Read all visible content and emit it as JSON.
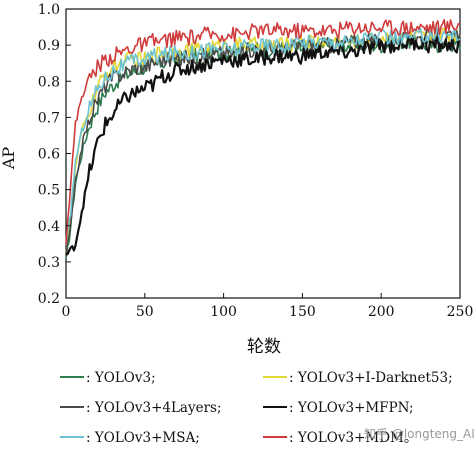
{
  "chart_data": {
    "type": "line",
    "title": "",
    "xlabel": "轮数",
    "ylabel": "AP",
    "xlim": [
      0,
      250
    ],
    "ylim": [
      0.2,
      1.0
    ],
    "x_ticks": [
      0,
      50,
      100,
      150,
      200,
      250
    ],
    "y_ticks": [
      0.2,
      0.3,
      0.4,
      0.5,
      0.6,
      0.7,
      0.8,
      0.9,
      1.0
    ],
    "grid": false,
    "legend_position": "bottom",
    "legend_columns": 2,
    "x": [
      0,
      3,
      6,
      10,
      15,
      20,
      25,
      30,
      35,
      40,
      45,
      50,
      55,
      60,
      70,
      80,
      90,
      100,
      110,
      120,
      130,
      140,
      150,
      160,
      170,
      180,
      190,
      200,
      210,
      220,
      230,
      240,
      250
    ],
    "series": [
      {
        "name": ": YOLOv3;",
        "color": "#2e7d4f",
        "values": [
          0.3,
          0.4,
          0.52,
          0.6,
          0.68,
          0.73,
          0.77,
          0.79,
          0.81,
          0.82,
          0.83,
          0.84,
          0.84,
          0.85,
          0.86,
          0.87,
          0.87,
          0.88,
          0.88,
          0.89,
          0.89,
          0.89,
          0.89,
          0.9,
          0.9,
          0.9,
          0.9,
          0.9,
          0.91,
          0.91,
          0.9,
          0.9,
          0.9
        ]
      },
      {
        "name": ": YOLOv3+I-Darknet53;",
        "color": "#e2d632",
        "values": [
          0.33,
          0.42,
          0.56,
          0.66,
          0.72,
          0.78,
          0.82,
          0.84,
          0.85,
          0.86,
          0.86,
          0.86,
          0.87,
          0.88,
          0.88,
          0.89,
          0.89,
          0.9,
          0.9,
          0.9,
          0.9,
          0.9,
          0.91,
          0.91,
          0.91,
          0.91,
          0.91,
          0.92,
          0.92,
          0.92,
          0.92,
          0.93,
          0.93
        ]
      },
      {
        "name": ": YOLOv3+4Layers;",
        "color": "#4a4a4a",
        "values": [
          0.32,
          0.4,
          0.52,
          0.62,
          0.7,
          0.75,
          0.79,
          0.81,
          0.82,
          0.83,
          0.84,
          0.84,
          0.85,
          0.86,
          0.86,
          0.87,
          0.87,
          0.88,
          0.88,
          0.89,
          0.89,
          0.89,
          0.9,
          0.9,
          0.9,
          0.91,
          0.91,
          0.91,
          0.91,
          0.92,
          0.92,
          0.92,
          0.92
        ]
      },
      {
        "name": ": YOLOv3+MFPN;",
        "color": "#111111",
        "values": [
          0.32,
          0.33,
          0.35,
          0.44,
          0.55,
          0.63,
          0.68,
          0.71,
          0.74,
          0.76,
          0.77,
          0.78,
          0.79,
          0.81,
          0.83,
          0.84,
          0.85,
          0.86,
          0.86,
          0.86,
          0.87,
          0.87,
          0.87,
          0.88,
          0.88,
          0.88,
          0.89,
          0.9,
          0.9,
          0.91,
          0.9,
          0.9,
          0.9
        ]
      },
      {
        "name": ": YOLOv3+MSA;",
        "color": "#6cc3d4",
        "values": [
          0.34,
          0.44,
          0.58,
          0.66,
          0.73,
          0.78,
          0.81,
          0.83,
          0.84,
          0.85,
          0.86,
          0.86,
          0.87,
          0.87,
          0.88,
          0.88,
          0.89,
          0.89,
          0.89,
          0.9,
          0.9,
          0.9,
          0.91,
          0.91,
          0.91,
          0.91,
          0.92,
          0.92,
          0.92,
          0.92,
          0.93,
          0.93,
          0.93
        ]
      },
      {
        "name": ": YOLOv3+MDM。",
        "color": "#cf3b3b",
        "values": [
          0.36,
          0.52,
          0.68,
          0.76,
          0.81,
          0.84,
          0.86,
          0.87,
          0.88,
          0.89,
          0.9,
          0.9,
          0.91,
          0.91,
          0.92,
          0.92,
          0.93,
          0.93,
          0.93,
          0.94,
          0.94,
          0.94,
          0.94,
          0.94,
          0.94,
          0.95,
          0.95,
          0.95,
          0.95,
          0.95,
          0.95,
          0.95,
          0.96
        ]
      }
    ]
  },
  "watermark": "知乎 @longteng_AI"
}
